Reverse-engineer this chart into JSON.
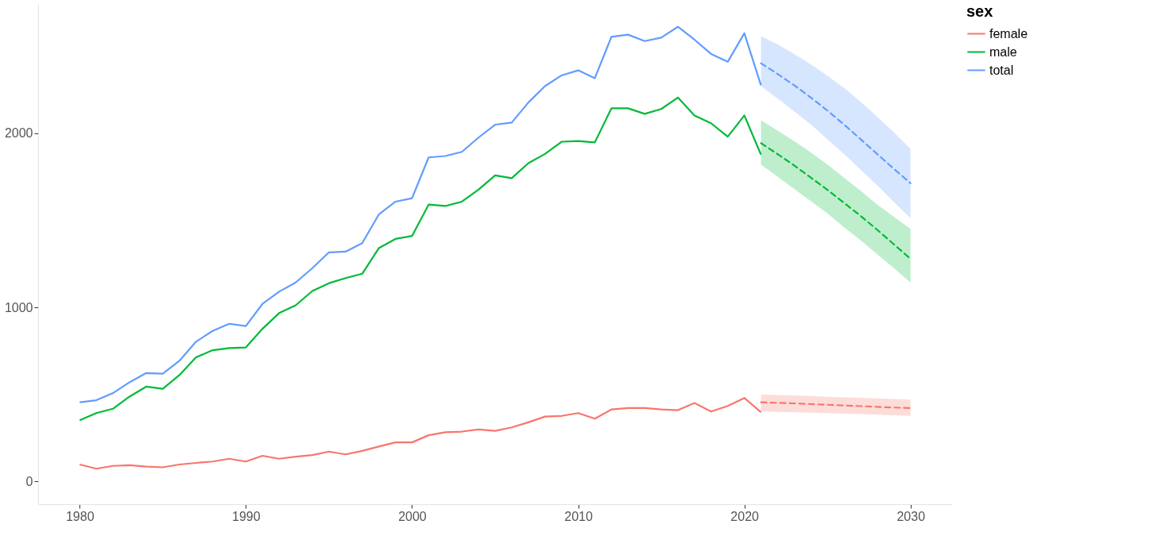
{
  "chart_data": {
    "type": "line",
    "legend_title": "sex",
    "legend": "right",
    "xlim": [
      1977.5,
      2032.5
    ],
    "xticks": [
      1980,
      1990,
      2000,
      2010,
      2020,
      2030
    ],
    "ylim": [
      -130,
      2742
    ],
    "yticks": [
      0,
      1000,
      2000
    ],
    "series": [
      {
        "name": "female",
        "color": "#f8766d",
        "line_style": "solid",
        "x": [
          1980,
          1981,
          1982,
          1983,
          1984,
          1985,
          1986,
          1987,
          1988,
          1989,
          1990,
          1991,
          1992,
          1993,
          1994,
          1995,
          1996,
          1997,
          1998,
          1999,
          2000,
          2001,
          2002,
          2003,
          2004,
          2005,
          2006,
          2007,
          2008,
          2009,
          2010,
          2011,
          2012,
          2013,
          2014,
          2015,
          2016,
          2017,
          2018,
          2019,
          2020,
          2021
        ],
        "values": [
          98,
          74,
          90,
          94,
          86,
          82,
          98,
          107,
          115,
          131,
          115,
          148,
          131,
          143,
          152,
          172,
          156,
          176,
          201,
          225,
          225,
          266,
          283,
          287,
          299,
          291,
          311,
          340,
          373,
          377,
          393,
          361,
          414,
          422,
          422,
          414,
          410,
          451,
          402,
          434,
          480,
          398
        ]
      },
      {
        "name": "male",
        "color": "#00ba38",
        "line_style": "solid",
        "x": [
          1980,
          1981,
          1982,
          1983,
          1984,
          1985,
          1986,
          1987,
          1988,
          1989,
          1990,
          1991,
          1992,
          1993,
          1994,
          1995,
          1996,
          1997,
          1998,
          1999,
          2000,
          2001,
          2002,
          2003,
          2004,
          2005,
          2006,
          2007,
          2008,
          2009,
          2010,
          2011,
          2012,
          2013,
          2014,
          2015,
          2016,
          2017,
          2018,
          2019,
          2020,
          2021
        ],
        "values": [
          352,
          393,
          418,
          488,
          545,
          533,
          611,
          713,
          754,
          766,
          770,
          877,
          967,
          1012,
          1094,
          1139,
          1168,
          1193,
          1340,
          1393,
          1410,
          1590,
          1582,
          1607,
          1676,
          1758,
          1742,
          1828,
          1881,
          1951,
          1955,
          1947,
          2143,
          2143,
          2111,
          2139,
          2205,
          2102,
          2057,
          1980,
          2102,
          1877
        ]
      },
      {
        "name": "total",
        "color": "#619cff",
        "line_style": "solid",
        "x": [
          1980,
          1981,
          1982,
          1983,
          1984,
          1985,
          1986,
          1987,
          1988,
          1989,
          1990,
          1991,
          1992,
          1993,
          1994,
          1995,
          1996,
          1997,
          1998,
          1999,
          2000,
          2001,
          2002,
          2003,
          2004,
          2005,
          2006,
          2007,
          2008,
          2009,
          2010,
          2011,
          2012,
          2013,
          2014,
          2015,
          2016,
          2017,
          2018,
          2019,
          2020,
          2021
        ],
        "values": [
          455,
          467,
          508,
          570,
          623,
          619,
          693,
          803,
          865,
          906,
          893,
          1020,
          1090,
          1143,
          1225,
          1316,
          1320,
          1369,
          1533,
          1607,
          1627,
          1861,
          1869,
          1893,
          1975,
          2049,
          2061,
          2176,
          2270,
          2332,
          2361,
          2316,
          2553,
          2566,
          2529,
          2549,
          2611,
          2537,
          2455,
          2410,
          2574,
          2275
        ]
      },
      {
        "color": "#f8766d",
        "line_style": "dashed",
        "x": [
          2021,
          2022,
          2023,
          2024,
          2025,
          2026,
          2027,
          2028,
          2029,
          2030
        ],
        "values": [
          455,
          452,
          449,
          445,
          441,
          437,
          433,
          429,
          425,
          422
        ],
        "lower": [
          402,
          400,
          398,
          395,
          393,
          390,
          387,
          384,
          381,
          377
        ],
        "upper": [
          500,
          497,
          494,
          491,
          487,
          484,
          481,
          478,
          474,
          471
        ]
      },
      {
        "color": "#00ba38",
        "line_style": "dashed",
        "x": [
          2021,
          2022,
          2023,
          2024,
          2025,
          2026,
          2027,
          2028,
          2029,
          2030
        ],
        "values": [
          1943,
          1880,
          1815,
          1745,
          1675,
          1600,
          1525,
          1445,
          1362,
          1279
        ],
        "lower": [
          1820,
          1750,
          1680,
          1610,
          1540,
          1460,
          1385,
          1305,
          1225,
          1143
        ],
        "upper": [
          2074,
          2015,
          1955,
          1890,
          1820,
          1745,
          1670,
          1590,
          1520,
          1451
        ]
      },
      {
        "color": "#619cff",
        "line_style": "dashed",
        "x": [
          2021,
          2022,
          2023,
          2024,
          2025,
          2026,
          2027,
          2028,
          2029,
          2030
        ],
        "values": [
          2402,
          2340,
          2275,
          2205,
          2130,
          2050,
          1965,
          1880,
          1795,
          1713
        ],
        "lower": [
          2270,
          2200,
          2125,
          2050,
          1965,
          1880,
          1790,
          1700,
          1605,
          1512
        ],
        "upper": [
          2557,
          2510,
          2455,
          2395,
          2330,
          2260,
          2180,
          2095,
          2005,
          1910
        ]
      }
    ]
  }
}
